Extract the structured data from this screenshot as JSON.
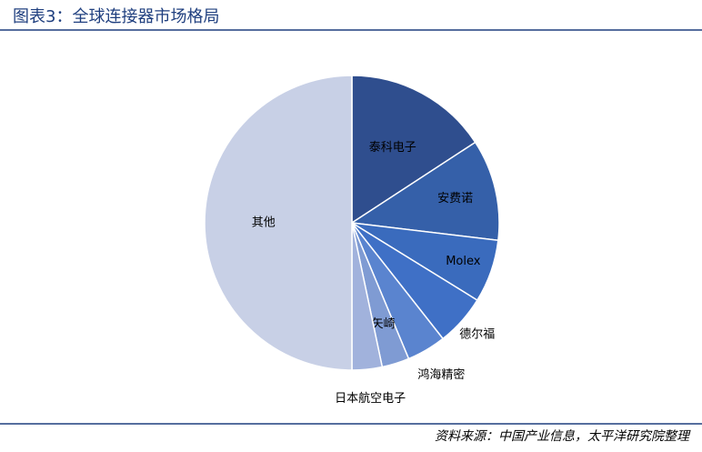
{
  "chart_data": {
    "type": "pie",
    "title": "图表3：全球连接器市场格局",
    "source": "资料来源：中国产业信息，太平洋研究院整理",
    "categories": [
      "泰科电子",
      "安费诺",
      "Molex",
      "德尔福",
      "鸿海精密",
      "矢崎",
      "日本航空电子",
      "其他"
    ],
    "values": [
      15.8,
      11.1,
      6.9,
      5.6,
      4.3,
      3.0,
      3.3,
      50
    ],
    "colors": [
      "#2f4e8e",
      "#3560a9",
      "#3a6bbd",
      "#3f70c6",
      "#5a84cf",
      "#7f9bd3",
      "#a1b2dc",
      "#c8d0e6"
    ]
  }
}
